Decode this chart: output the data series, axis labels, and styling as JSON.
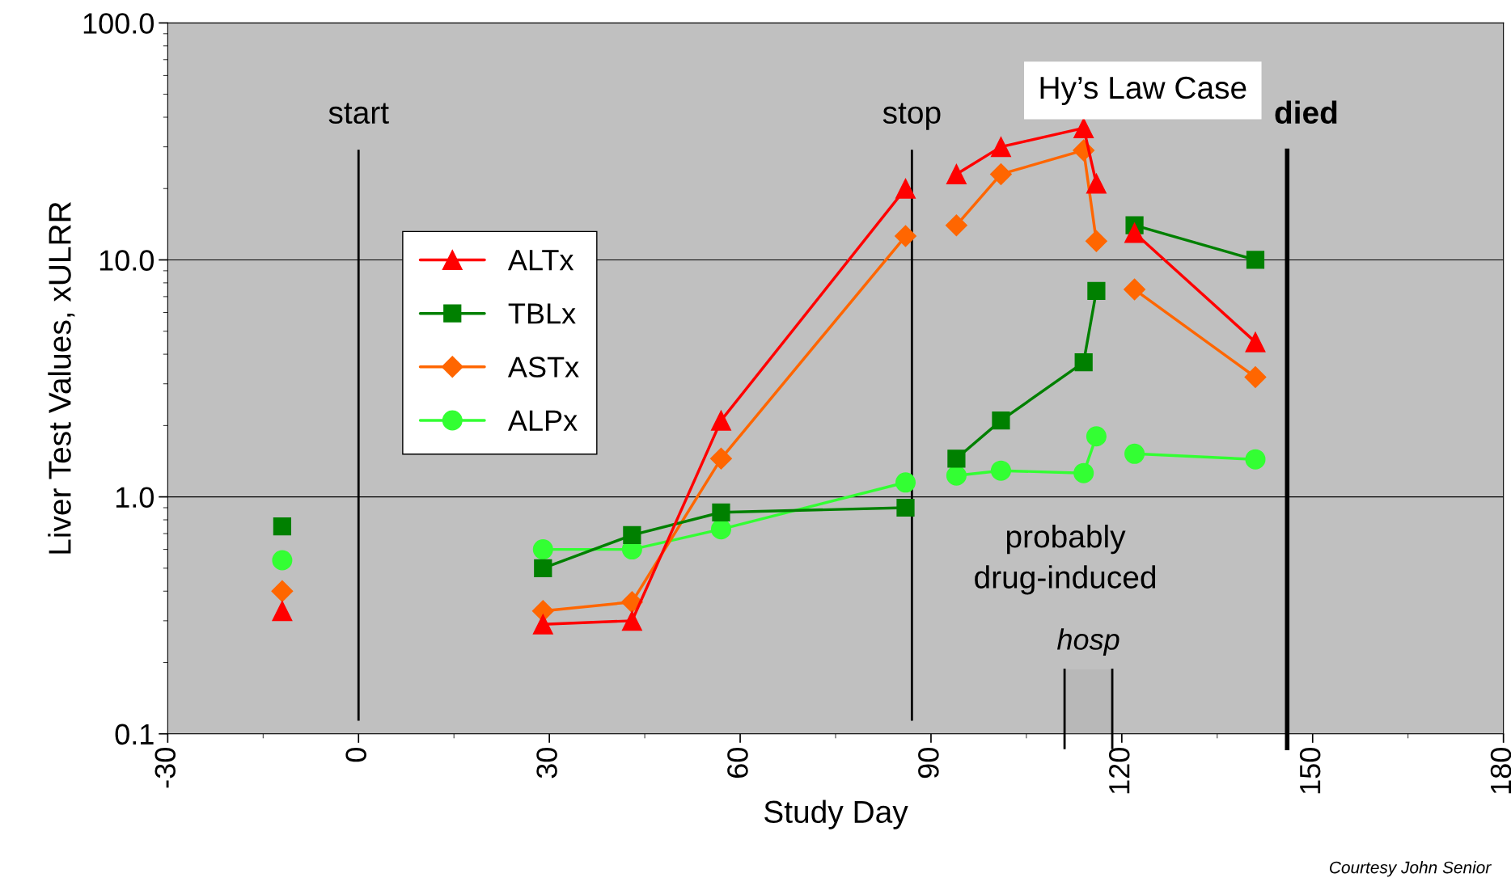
{
  "chart_data": {
    "type": "line",
    "xlabel": "Study Day",
    "ylabel": "Liver Test Values, xULRR",
    "log": "y",
    "grid": "y",
    "legend": "center left",
    "line_style": "solid",
    "xlim": [
      -30,
      180
    ],
    "xticks": [
      -30,
      0,
      30,
      60,
      90,
      120,
      150,
      180
    ],
    "ylim": [
      0.1,
      100
    ],
    "yticks": [
      {
        "value": 0.1,
        "label": "0.1"
      },
      {
        "value": 1,
        "label": "1.0"
      },
      {
        "value": 10,
        "label": "10.0"
      },
      {
        "value": 100,
        "label": "100.0"
      }
    ],
    "series": [
      {
        "name": "ALTx",
        "color": "#ff0000",
        "marker": "triangle",
        "x": [
          -12,
          null,
          29,
          43,
          57,
          86,
          null,
          94,
          101,
          114,
          116,
          null,
          122,
          141
        ],
        "values": [
          0.33,
          null,
          0.29,
          0.3,
          2.1,
          20,
          null,
          23,
          30,
          36,
          21,
          null,
          13,
          4.5
        ]
      },
      {
        "name": "TBLx",
        "color": "#008000",
        "marker": "square",
        "x": [
          -12,
          null,
          29,
          43,
          57,
          86,
          null,
          94,
          101,
          114,
          116,
          null,
          122,
          141
        ],
        "values": [
          0.75,
          null,
          0.5,
          0.69,
          0.86,
          0.9,
          null,
          1.45,
          2.1,
          3.7,
          7.4,
          null,
          14,
          10
        ]
      },
      {
        "name": "ASTx",
        "color": "#ff6600",
        "marker": "diamond",
        "x": [
          -12,
          null,
          29,
          43,
          57,
          86,
          null,
          94,
          101,
          114,
          116,
          null,
          122,
          141
        ],
        "values": [
          0.4,
          null,
          0.33,
          0.36,
          1.45,
          12.6,
          null,
          14,
          23,
          29,
          12,
          null,
          7.5,
          3.2
        ]
      },
      {
        "name": "ALPx",
        "color": "#33ff33",
        "marker": "circle",
        "x": [
          -12,
          null,
          29,
          43,
          57,
          86,
          null,
          94,
          101,
          114,
          116,
          null,
          122,
          141
        ],
        "values": [
          0.54,
          null,
          0.6,
          0.6,
          0.73,
          1.15,
          null,
          1.23,
          1.29,
          1.26,
          1.8,
          null,
          1.52,
          1.44
        ]
      }
    ],
    "ref_lines": [
      {
        "axis": "x",
        "value": 0,
        "label": "start",
        "color": "#000000"
      },
      {
        "axis": "x",
        "value": 87,
        "label": "stop",
        "color": "#000000"
      },
      {
        "axis": "x",
        "value": 146,
        "label": "died",
        "color": "#000000"
      }
    ],
    "bands": [
      {
        "axis": "x",
        "from": 111,
        "to": 118.5,
        "label": "hosp",
        "color": "#b8b8b8"
      }
    ],
    "annotations": [
      "Hy’s Law Case",
      "probably\ndrug-induced",
      "Courtesy John Senior"
    ]
  }
}
